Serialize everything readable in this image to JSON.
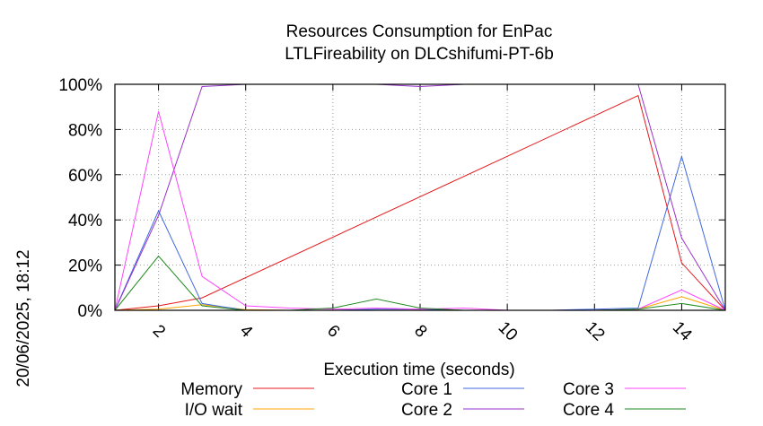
{
  "chart_data": {
    "type": "line",
    "title": [
      "Resources Consumption for EnPac",
      "LTLFireability on DLCshifumi-PT-6b"
    ],
    "xlabel": "Execution time (seconds)",
    "ylabel": "",
    "side_label": "20/06/2025, 18:12",
    "xlim": [
      1,
      15
    ],
    "ylim": [
      0,
      100
    ],
    "xticks": [
      2,
      4,
      6,
      8,
      10,
      12,
      14
    ],
    "yticks": [
      0,
      20,
      40,
      60,
      80,
      100
    ],
    "ytick_labels": [
      "0%",
      "20%",
      "40%",
      "60%",
      "80%",
      "100%"
    ],
    "grid": true,
    "legend_position": "bottom",
    "series": [
      {
        "name": "Memory",
        "color": "#e41a1c",
        "x": [
          1,
          2,
          3,
          13,
          14,
          15
        ],
        "y": [
          0,
          2,
          5.5,
          95,
          21,
          0
        ]
      },
      {
        "name": "I/O wait",
        "color": "#ffa500",
        "x": [
          1,
          2,
          3,
          4,
          5,
          6,
          7,
          8,
          9,
          10,
          11,
          12,
          13,
          14,
          15
        ],
        "y": [
          0,
          0.5,
          2.5,
          0.3,
          0,
          0,
          0,
          0,
          0,
          0,
          0,
          0,
          0.5,
          6,
          0
        ]
      },
      {
        "name": "Core 1",
        "color": "#4169e1",
        "x": [
          1,
          2,
          3,
          4,
          5,
          6,
          7,
          8,
          9,
          10,
          11,
          12,
          13,
          14,
          15
        ],
        "y": [
          0,
          44,
          3,
          0,
          0,
          0,
          0.5,
          0.5,
          0,
          0,
          0,
          0.5,
          1,
          68,
          0
        ]
      },
      {
        "name": "Core 2",
        "color": "#9932cc",
        "x": [
          1,
          2,
          3,
          4,
          5,
          6,
          7,
          8,
          9,
          10,
          11,
          12,
          13,
          14,
          15
        ],
        "y": [
          0,
          42,
          99,
          100,
          100,
          100,
          100,
          99,
          100,
          100,
          100,
          100,
          100,
          32,
          0
        ]
      },
      {
        "name": "Core 3",
        "color": "#ff44ff",
        "x": [
          1,
          2,
          3,
          4,
          5,
          6,
          7,
          8,
          9,
          10,
          11,
          12,
          13,
          14,
          15
        ],
        "y": [
          0,
          88,
          15,
          2,
          1,
          0.5,
          1,
          0.5,
          1,
          0,
          0,
          0,
          0.5,
          9,
          0
        ]
      },
      {
        "name": "Core 4",
        "color": "#228b22",
        "x": [
          1,
          2,
          3,
          4,
          5,
          6,
          7,
          8,
          9,
          10,
          11,
          12,
          13,
          14,
          15
        ],
        "y": [
          0,
          24,
          2,
          0,
          0,
          1,
          5,
          1,
          0,
          0,
          0,
          0,
          0.5,
          3,
          0
        ]
      }
    ]
  }
}
